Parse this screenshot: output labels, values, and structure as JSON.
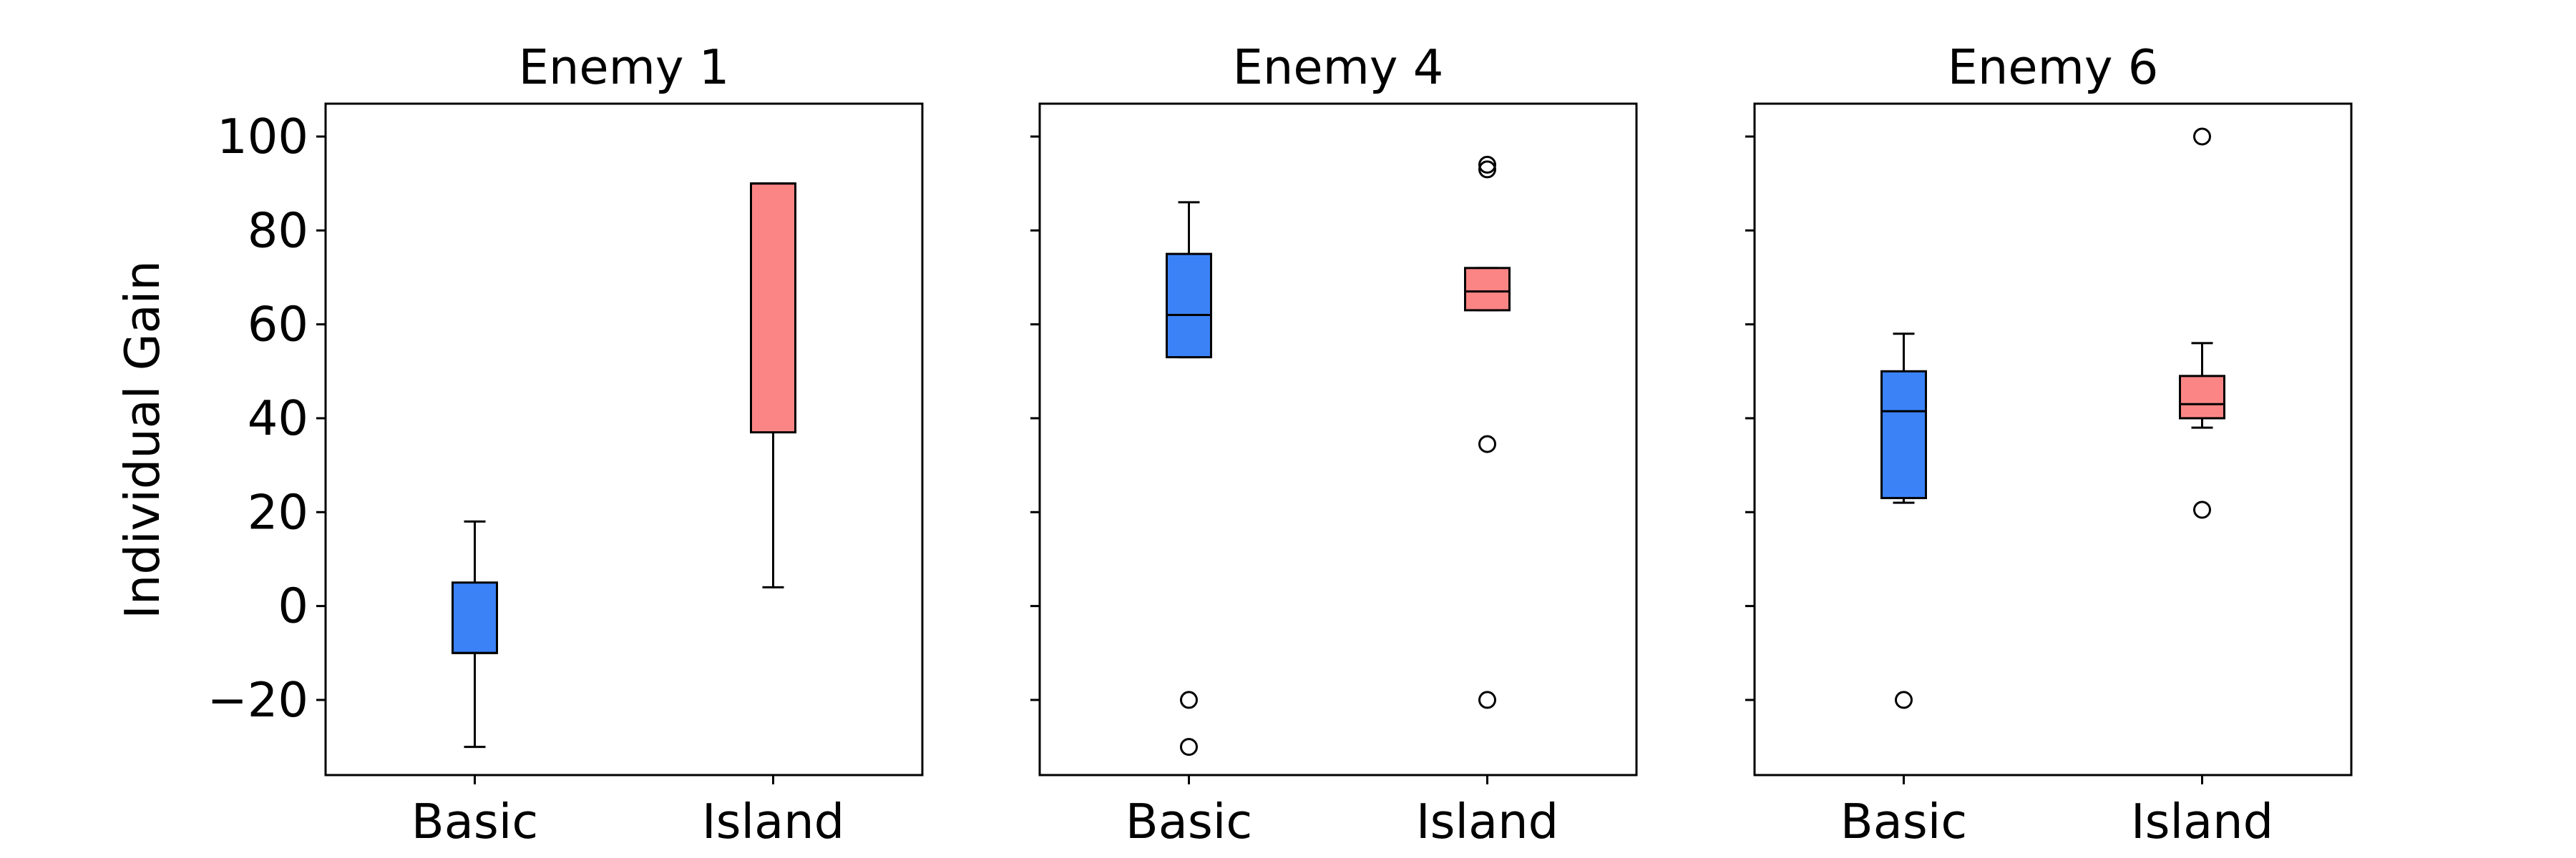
{
  "chart_data": {
    "type": "box",
    "ylabel": "Individual Gain",
    "ylim": [
      -36,
      107
    ],
    "yticks": [
      -20,
      0,
      20,
      40,
      60,
      80,
      100
    ],
    "categories": [
      "Basic",
      "Island"
    ],
    "colors": {
      "Basic": "#3b82f6",
      "Island": "#fb8585"
    },
    "panels": [
      {
        "title": "Enemy 1",
        "boxes": [
          {
            "category": "Basic",
            "whisker_low": -30,
            "q1": -10,
            "median": -10,
            "q3": 5,
            "whisker_high": 18,
            "fliers": []
          },
          {
            "category": "Island",
            "whisker_low": 4,
            "q1": 37,
            "median": 90,
            "q3": 90,
            "whisker_high": 90,
            "fliers": []
          }
        ]
      },
      {
        "title": "Enemy 4",
        "boxes": [
          {
            "category": "Basic",
            "whisker_low": 53,
            "q1": 53,
            "median": 62,
            "q3": 75,
            "whisker_high": 86,
            "fliers": [
              -20,
              -30
            ]
          },
          {
            "category": "Island",
            "whisker_low": 63,
            "q1": 63,
            "median": 67,
            "q3": 72,
            "whisker_high": 72,
            "fliers": [
              94,
              93,
              34.5,
              -20
            ]
          }
        ]
      },
      {
        "title": "Enemy 6",
        "boxes": [
          {
            "category": "Basic",
            "whisker_low": 22,
            "q1": 23,
            "median": 41.5,
            "q3": 50,
            "whisker_high": 58,
            "fliers": [
              -20
            ]
          },
          {
            "category": "Island",
            "whisker_low": 38,
            "q1": 40,
            "median": 43,
            "q3": 49,
            "whisker_high": 56,
            "fliers": [
              100,
              20.5
            ]
          }
        ]
      }
    ]
  }
}
